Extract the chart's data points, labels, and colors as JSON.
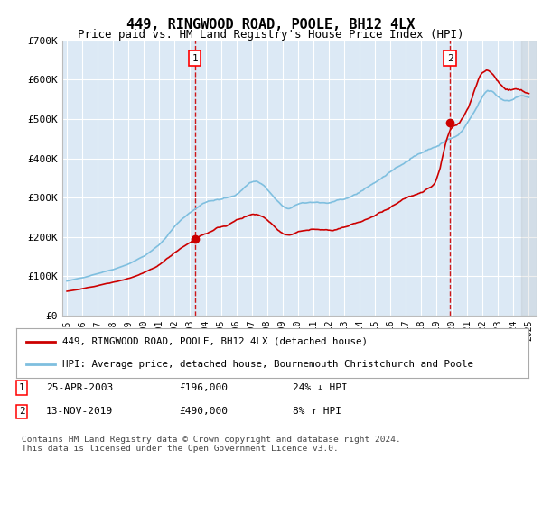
{
  "title": "449, RINGWOOD ROAD, POOLE, BH12 4LX",
  "subtitle": "Price paid vs. HM Land Registry's House Price Index (HPI)",
  "ylim": [
    0,
    700000
  ],
  "yticks": [
    0,
    100000,
    200000,
    300000,
    400000,
    500000,
    600000,
    700000
  ],
  "ytick_labels": [
    "£0",
    "£100K",
    "£200K",
    "£300K",
    "£400K",
    "£500K",
    "£600K",
    "£700K"
  ],
  "xlim_start": 1994.7,
  "xlim_end": 2025.5,
  "plot_bg_color": "#dce9f5",
  "hpi_color": "#7fbfdf",
  "sale_color": "#cc0000",
  "grid_color": "#ffffff",
  "title_fontsize": 11,
  "subtitle_fontsize": 9,
  "sale1_date": 2003.31,
  "sale1_price": 196000,
  "sale2_date": 2019.87,
  "sale2_price": 490000,
  "legend_line1": "449, RINGWOOD ROAD, POOLE, BH12 4LX (detached house)",
  "legend_line2": "HPI: Average price, detached house, Bournemouth Christchurch and Poole",
  "table_row1": [
    "1",
    "25-APR-2003",
    "£196,000",
    "24% ↓ HPI"
  ],
  "table_row2": [
    "2",
    "13-NOV-2019",
    "£490,000",
    "8% ↑ HPI"
  ],
  "footer": "Contains HM Land Registry data © Crown copyright and database right 2024.\nThis data is licensed under the Open Government Licence v3.0."
}
